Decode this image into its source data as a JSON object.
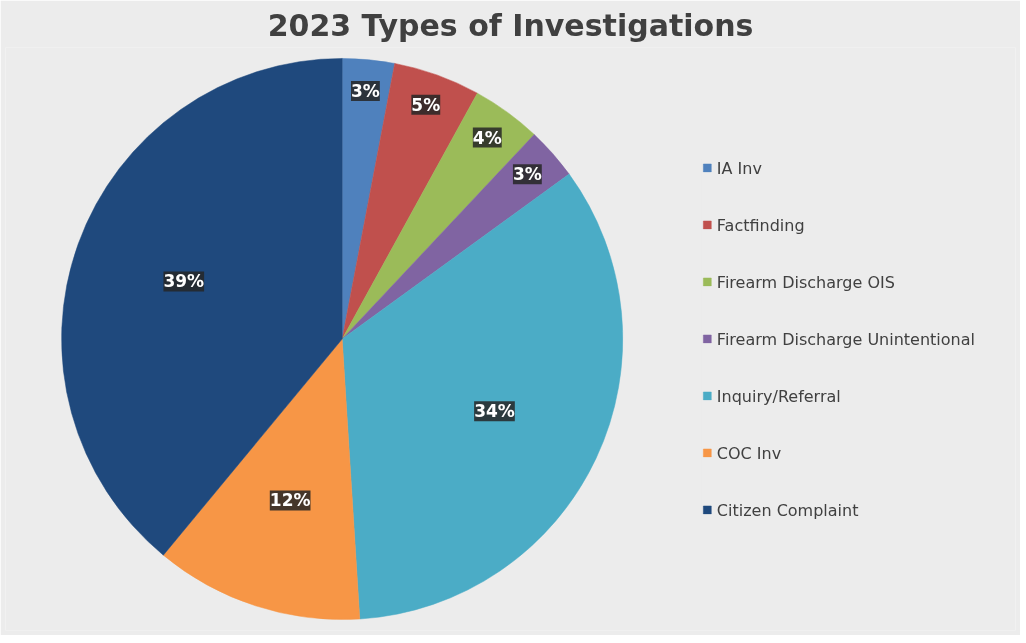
{
  "chart_data": {
    "type": "pie",
    "title": "2023 Types of Investigations",
    "categories": [
      "IA Inv",
      "Factfinding",
      "Firearm Discharge OIS",
      "Firearm Discharge Unintentional",
      "Inquiry/Referral",
      "COC Inv",
      "Citizen Complaint"
    ],
    "values": [
      3,
      5,
      4,
      3,
      34,
      12,
      39
    ],
    "value_labels": [
      "3%",
      "5%",
      "4%",
      "3%",
      "34%",
      "12%",
      "39%"
    ],
    "colors": [
      "#4f81bd",
      "#c0504d",
      "#9bbb59",
      "#8064a2",
      "#4bacc6",
      "#f79646",
      "#1f497d"
    ],
    "legend": "right"
  }
}
